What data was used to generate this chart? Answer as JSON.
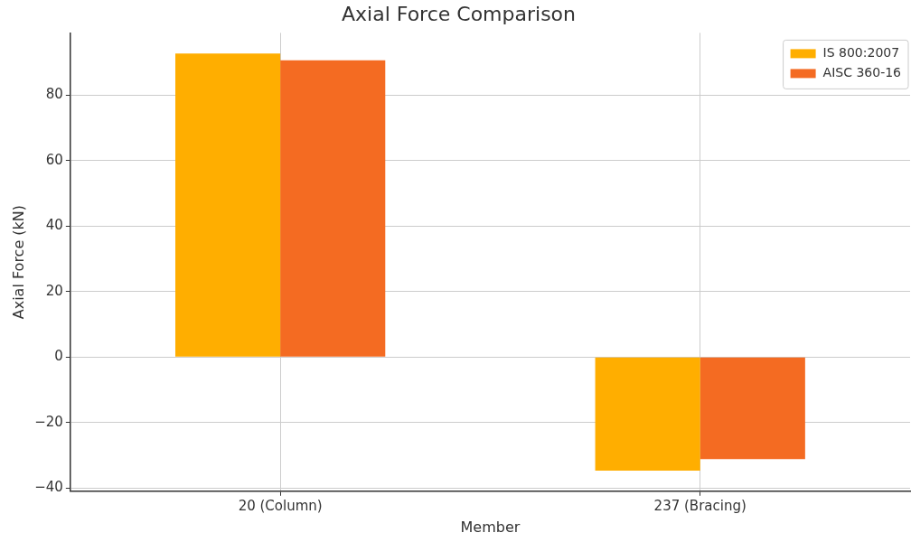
{
  "chart_data": {
    "type": "bar",
    "title": "Axial Force Comparison",
    "xlabel": "Member",
    "ylabel": "Axial Force (kN)",
    "categories": [
      "20 (Column)",
      "237 (Bracing)"
    ],
    "series": [
      {
        "name": "IS 800:2007",
        "color": "#ffae00",
        "values": [
          92.7,
          -34.7
        ]
      },
      {
        "name": "AISC 360-16",
        "color": "#f46b22",
        "values": [
          90.6,
          -31.2
        ]
      }
    ],
    "ylim": [
      -41,
      99
    ],
    "yticks": [
      -40,
      -20,
      0,
      20,
      40,
      60,
      80
    ],
    "grid": true,
    "legend": "top right"
  }
}
